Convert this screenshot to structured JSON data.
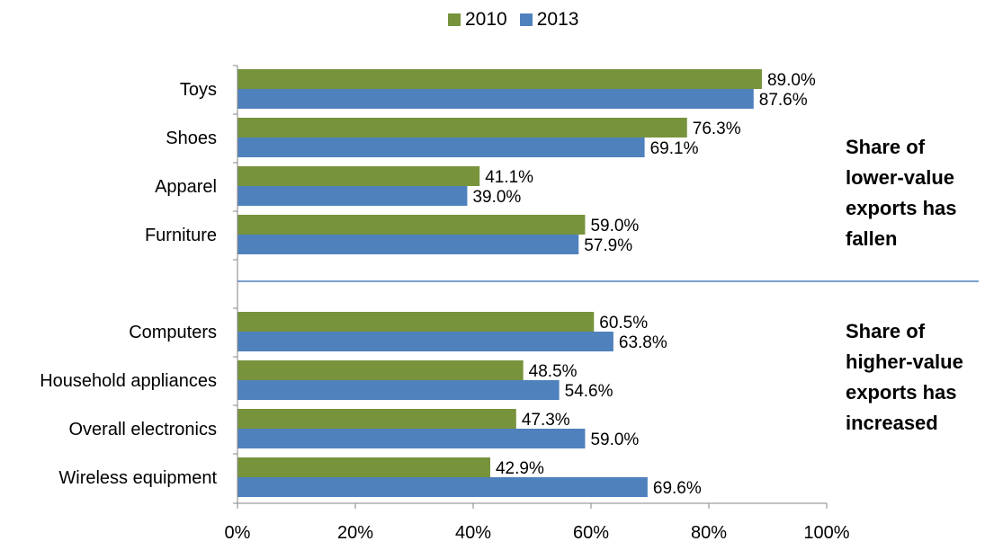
{
  "chart_data": {
    "type": "bar",
    "orientation": "horizontal",
    "categories": [
      "Toys",
      "Shoes",
      "Apparel",
      "Furniture",
      "Computers",
      "Household appliances",
      "Overall electronics",
      "Wireless equipment"
    ],
    "series": [
      {
        "name": "2010",
        "color": "#77933c",
        "values": [
          89.0,
          76.3,
          41.1,
          59.0,
          60.5,
          48.5,
          47.3,
          42.9
        ],
        "labels": [
          "89.0%",
          "76.3%",
          "41.1%",
          "59.0%",
          "60.5%",
          "48.5%",
          "47.3%",
          "42.9%"
        ]
      },
      {
        "name": "2013",
        "color": "#4f81bd",
        "values": [
          87.6,
          69.1,
          39.0,
          57.9,
          63.8,
          54.6,
          59.0,
          69.6
        ],
        "labels": [
          "87.6%",
          "69.1%",
          "39.0%",
          "57.9%",
          "63.8%",
          "54.6%",
          "59.0%",
          "69.6%"
        ]
      }
    ],
    "xlim": [
      0,
      100
    ],
    "xticks": [
      "0%",
      "20%",
      "40%",
      "60%",
      "80%",
      "100%"
    ],
    "grid": false,
    "legend_position": "top-center",
    "annotations": [
      {
        "lines": [
          "Share of",
          "lower-value",
          "exports has",
          "fallen"
        ]
      },
      {
        "lines": [
          "Share of",
          "higher-value",
          "exports has",
          "increased"
        ]
      }
    ]
  }
}
